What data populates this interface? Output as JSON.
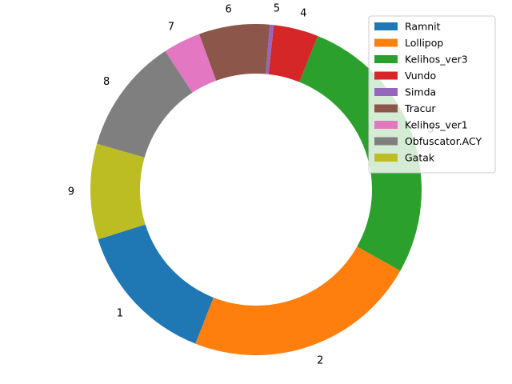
{
  "chart_data": {
    "type": "pie",
    "variant": "donut",
    "start_angle_deg": 197.5,
    "direction": "counterclockwise",
    "categories": [
      "1",
      "2",
      "3",
      "4",
      "5",
      "6",
      "7",
      "8",
      "9"
    ],
    "series_names": [
      "Ramnit",
      "Lollipop",
      "Kelihos_ver3",
      "Vundo",
      "Simda",
      "Tracur",
      "Kelihos_ver1",
      "Obfuscator.ACY",
      "Gatak"
    ],
    "values": [
      1541,
      2478,
      2942,
      475,
      42,
      751,
      398,
      1228,
      1013
    ],
    "colors": [
      "#1f77b4",
      "#ff7f0e",
      "#2ca02c",
      "#d62728",
      "#9467bd",
      "#8c564b",
      "#e377c2",
      "#7f7f7f",
      "#bcbd22"
    ],
    "legend_position": "top-right",
    "title": ""
  }
}
